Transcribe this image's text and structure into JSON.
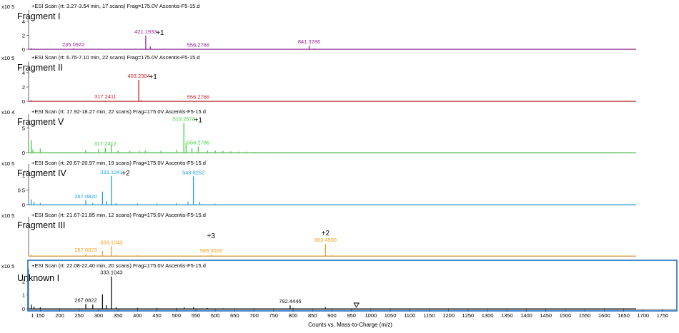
{
  "chart_data": [
    {
      "type": "line",
      "scan_header": "+ESI Scan (rt: 3.27-3.54 min, 17 scans) Frag=175.0V Ascentis-F5-15.d",
      "y_exponent_label": "x10 5",
      "fragment_label": "Fragment I",
      "charge_label": "+1",
      "y_ticks": [
        0,
        2,
        4
      ],
      "ylim": [
        0,
        5.2
      ],
      "color": "#9b1f9b",
      "peaks": [
        [
          127,
          0.15
        ],
        [
          235.0922,
          0.12
        ],
        [
          421.1933,
          1.95
        ],
        [
          433,
          0.4
        ],
        [
          556.2766,
          0.05
        ],
        [
          841.3786,
          0.5
        ],
        [
          855,
          0.1
        ]
      ],
      "peak_labels": [
        {
          "x": 235.0922,
          "y": 0.12,
          "text": "235.0922"
        },
        {
          "x": 421.1933,
          "y": 1.95,
          "text": "421.1933"
        },
        {
          "x": 556.2766,
          "y": 0.05,
          "text": "556.2766"
        },
        {
          "x": 841.3786,
          "y": 0.5,
          "text": "841.3786"
        }
      ]
    },
    {
      "type": "line",
      "scan_header": "+ESI Scan (rt: 6.75-7.10 min, 22 scans) Frag=175.0V Ascentis-F5-15.d",
      "y_exponent_label": "x10 5",
      "fragment_label": "Fragment II",
      "charge_label": "+1",
      "y_ticks": [
        0,
        2,
        4
      ],
      "ylim": [
        0,
        5.2
      ],
      "color": "#cc1f1f",
      "peaks": [
        [
          127,
          0.15
        ],
        [
          317.2411,
          0.08
        ],
        [
          403.2304,
          3.0
        ],
        [
          410,
          0.15
        ],
        [
          556.2766,
          0.05
        ]
      ],
      "peak_labels": [
        {
          "x": 317.2411,
          "y": 0.08,
          "text": "317.2411"
        },
        {
          "x": 403.2304,
          "y": 3.0,
          "text": "403.2304"
        },
        {
          "x": 556.2766,
          "y": 0.05,
          "text": "556.2766"
        }
      ]
    },
    {
      "type": "line",
      "scan_header": "+ESI Scan (rt: 17.92-18.27 min, 22 scans) Frag=175.0V Ascentis-F5-15.d",
      "y_exponent_label": "x10 4",
      "fragment_label": "Fragment V",
      "charge_label": "+1",
      "y_ticks": [
        0,
        5
      ],
      "ylim": [
        0,
        7.2
      ],
      "color": "#3fcf3f",
      "peaks": [
        [
          127,
          2.5
        ],
        [
          131,
          0.6
        ],
        [
          150,
          0.8
        ],
        [
          267,
          0.5
        ],
        [
          300,
          0.7
        ],
        [
          317.2412,
          1.0
        ],
        [
          333,
          1.6
        ],
        [
          350,
          0.4
        ],
        [
          380,
          0.3
        ],
        [
          405,
          0.3
        ],
        [
          420,
          0.4
        ],
        [
          460,
          0.3
        ],
        [
          500,
          0.5
        ],
        [
          519.2578,
          6.0
        ],
        [
          525,
          2.0
        ],
        [
          540,
          0.9
        ],
        [
          556.2786,
          1.2
        ],
        [
          580,
          0.4
        ],
        [
          600,
          0.4
        ],
        [
          620,
          0.3
        ],
        [
          640,
          0.25
        ],
        [
          660,
          0.2
        ],
        [
          680,
          0.2
        ],
        [
          700,
          0.15
        ],
        [
          720,
          0.1
        ]
      ],
      "peak_labels": [
        {
          "x": 317.2412,
          "y": 1.0,
          "text": "317.2412"
        },
        {
          "x": 519.2578,
          "y": 6.0,
          "text": "519.2578"
        },
        {
          "x": 556.2786,
          "y": 1.2,
          "text": "556.2786"
        }
      ]
    },
    {
      "type": "line",
      "scan_header": "+ESI Scan (rt: 20.67-20.97 min, 19 scans) Frag=175.0V Ascentis-F5-15.d",
      "y_exponent_label": "x10 5",
      "fragment_label": "Fragment IV",
      "charge_label": "+2",
      "y_ticks": [
        0,
        0.5,
        1
      ],
      "ylim": [
        0,
        1.3
      ],
      "color": "#1f9fdf",
      "peaks": [
        [
          127,
          0.18
        ],
        [
          134,
          0.1
        ],
        [
          150,
          0.06
        ],
        [
          267.082,
          0.15
        ],
        [
          285,
          0.06
        ],
        [
          310,
          0.45
        ],
        [
          320,
          0.12
        ],
        [
          333.1041,
          0.98
        ],
        [
          345,
          0.05
        ],
        [
          400,
          0.04
        ],
        [
          450,
          0.04
        ],
        [
          500,
          0.05
        ],
        [
          530,
          0.1
        ],
        [
          543.8252,
          0.97
        ],
        [
          560,
          0.09
        ],
        [
          600,
          0.03
        ]
      ],
      "peak_labels": [
        {
          "x": 267.082,
          "y": 0.15,
          "text": "267.0820"
        },
        {
          "x": 333.1041,
          "y": 0.98,
          "text": "333.1041"
        },
        {
          "x": 543.8252,
          "y": 0.97,
          "text": "543.8252"
        }
      ]
    },
    {
      "type": "line",
      "scan_header": "+ESI Scan (rt: 21.67-21.85 min, 12 scans) Frag=175.0V Ascentis-F5-15.d",
      "y_exponent_label": "x10 5",
      "fragment_label": "Fragment III",
      "charge_label": "+2",
      "extra_label": "+3",
      "y_ticks": [],
      "ylim": [
        0,
        1.3
      ],
      "color": "#f0a020",
      "peaks": [
        [
          127,
          0.05
        ],
        [
          267.0823,
          0.08
        ],
        [
          290,
          0.04
        ],
        [
          310,
          0.18
        ],
        [
          333.1043,
          0.35
        ],
        [
          345,
          0.03
        ],
        [
          400,
          0.03
        ],
        [
          589.3028,
          0.05
        ],
        [
          883.45,
          0.43
        ],
        [
          900,
          0.04
        ]
      ],
      "peak_labels": [
        {
          "x": 267.0823,
          "y": 0.08,
          "text": "267.0823"
        },
        {
          "x": 333.1043,
          "y": 0.35,
          "text": "333.1043"
        },
        {
          "x": 589.3028,
          "y": 0.05,
          "text": "589.3028"
        },
        {
          "x": 883.45,
          "y": 0.43,
          "text": "883.4500"
        }
      ]
    },
    {
      "type": "line",
      "scan_header": "+ESI Scan (rt: 22.08-22.40 min, 20 scans) Frag=175.0V Ascentis-F5-15.d",
      "y_exponent_label": "x10 5",
      "fragment_label": "Unknown I",
      "y_ticks": [
        0,
        1,
        2
      ],
      "ylim": [
        0,
        2.7
      ],
      "color": "#111111",
      "peaks": [
        [
          127,
          0.3
        ],
        [
          134,
          0.15
        ],
        [
          150,
          0.1
        ],
        [
          267.0822,
          0.35
        ],
        [
          285,
          0.3
        ],
        [
          310,
          1.05
        ],
        [
          320,
          0.25
        ],
        [
          333.1043,
          2.35
        ],
        [
          345,
          0.1
        ],
        [
          400,
          0.06
        ],
        [
          450,
          0.06
        ],
        [
          500,
          0.05
        ],
        [
          520,
          0.1
        ],
        [
          544,
          0.12
        ],
        [
          580,
          0.05
        ],
        [
          620,
          0.04
        ],
        [
          700,
          0.03
        ],
        [
          792.4446,
          0.25
        ],
        [
          800,
          0.06
        ],
        [
          883,
          0.12
        ]
      ],
      "peak_labels": [
        {
          "x": 267.0822,
          "y": 0.35,
          "text": "267.0822"
        },
        {
          "x": 333.1043,
          "y": 2.35,
          "text": "333.1043"
        },
        {
          "x": 792.4446,
          "y": 0.25,
          "text": "792.4446"
        }
      ],
      "marker_x": 963
    }
  ],
  "x_axis": {
    "title": "Counts vs. Mass-to-Charge (m/z)",
    "xlim": [
      120,
      1785
    ],
    "ticks": [
      150,
      200,
      250,
      300,
      350,
      400,
      450,
      500,
      550,
      600,
      650,
      700,
      750,
      800,
      850,
      900,
      950,
      1000,
      1050,
      1100,
      1150,
      1200,
      1250,
      1300,
      1350,
      1400,
      1450,
      1500,
      1550,
      1600,
      1650,
      1700,
      1750
    ],
    "tick_labels": [
      "150",
      "200",
      "250",
      "300",
      "350",
      "400",
      "450",
      "500",
      "550",
      "600",
      "650",
      "700",
      "750",
      "800",
      "850",
      "900",
      "950",
      "1000",
      "1050",
      "1100",
      "1150",
      "1200",
      "1250",
      "1300",
      "1350",
      "1400",
      "1450",
      "1500",
      "1550",
      "1600",
      "1650",
      "1700",
      "1750"
    ],
    "extra_tick_labels": [
      {
        "x": 130,
        "text": "1"
      }
    ]
  },
  "selection_color": "#1f6fbf"
}
